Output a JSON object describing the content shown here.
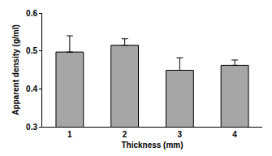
{
  "chart_data": {
    "type": "bar",
    "x_label": "Thickness (mm)",
    "y_label": "Apparent density (g/ml)",
    "categories": [
      "1",
      "2",
      "3",
      "4"
    ],
    "values": [
      0.497,
      0.515,
      0.449,
      0.462
    ],
    "errors": [
      0.043,
      0.017,
      0.033,
      0.014
    ],
    "color": "#a6a6a6",
    "ylim": [
      0.3,
      0.6
    ],
    "yticks": [
      0.3,
      0.4,
      0.5,
      0.6
    ],
    "grid": false
  }
}
